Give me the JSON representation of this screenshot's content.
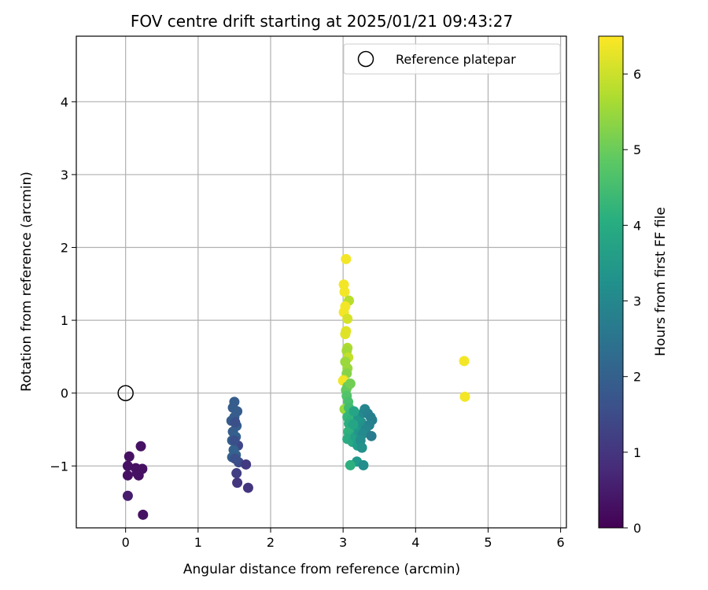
{
  "chart_data": {
    "type": "scatter",
    "title": "FOV centre drift starting at 2025/01/21 09:43:27",
    "xlabel": "Angular distance from reference (arcmin)",
    "ylabel": "Rotation from reference (arcmin)",
    "xlim": [
      -0.68,
      6.08
    ],
    "ylim": [
      -1.85,
      4.9
    ],
    "xticks": [
      0,
      1,
      2,
      3,
      4,
      5,
      6
    ],
    "yticks": [
      -1,
      0,
      1,
      2,
      3,
      4
    ],
    "xtick_labels": [
      "0",
      "1",
      "2",
      "3",
      "4",
      "5",
      "6"
    ],
    "ytick_labels": [
      "−1",
      "0",
      "1",
      "2",
      "3",
      "4"
    ],
    "grid": true,
    "legend": {
      "placement": "top-right",
      "entries": [
        "Reference platepar"
      ]
    },
    "reference_point": {
      "x": 0.0,
      "y": 0.0
    },
    "colorbar": {
      "label": "Hours from first FF file",
      "range": [
        0,
        6.5
      ],
      "ticks": [
        0,
        1,
        2,
        3,
        4,
        5,
        6
      ],
      "tick_labels": [
        "0",
        "1",
        "2",
        "3",
        "4",
        "5",
        "6"
      ],
      "colormap": "viridis"
    },
    "points": [
      {
        "x": 0.21,
        "y": -0.73,
        "c": 0.3
      },
      {
        "x": 0.05,
        "y": -0.87,
        "c": 0.3
      },
      {
        "x": 0.03,
        "y": -1.0,
        "c": 0.3
      },
      {
        "x": 0.14,
        "y": -1.03,
        "c": 0.3
      },
      {
        "x": 0.23,
        "y": -1.04,
        "c": 0.3
      },
      {
        "x": 0.03,
        "y": -1.13,
        "c": 0.3
      },
      {
        "x": 0.18,
        "y": -1.13,
        "c": 0.3
      },
      {
        "x": 0.16,
        "y": -1.1,
        "c": 0.3
      },
      {
        "x": 0.03,
        "y": -1.41,
        "c": 0.5
      },
      {
        "x": 0.24,
        "y": -1.67,
        "c": 0.3
      },
      {
        "x": 1.5,
        "y": -0.12,
        "c": 1.9
      },
      {
        "x": 1.48,
        "y": -0.2,
        "c": 1.9
      },
      {
        "x": 1.54,
        "y": -0.25,
        "c": 1.9
      },
      {
        "x": 1.5,
        "y": -0.33,
        "c": 1.9
      },
      {
        "x": 1.46,
        "y": -0.38,
        "c": 1.9
      },
      {
        "x": 1.53,
        "y": -0.45,
        "c": 1.9
      },
      {
        "x": 1.48,
        "y": -0.53,
        "c": 1.9
      },
      {
        "x": 1.52,
        "y": -0.6,
        "c": 2.0
      },
      {
        "x": 1.47,
        "y": -0.65,
        "c": 2.0
      },
      {
        "x": 1.55,
        "y": -0.72,
        "c": 1.4
      },
      {
        "x": 1.49,
        "y": -0.78,
        "c": 2.0
      },
      {
        "x": 1.52,
        "y": -0.85,
        "c": 2.0
      },
      {
        "x": 1.47,
        "y": -0.88,
        "c": 2.0
      },
      {
        "x": 1.56,
        "y": -0.95,
        "c": 1.5
      },
      {
        "x": 1.66,
        "y": -0.98,
        "c": 1.1
      },
      {
        "x": 1.53,
        "y": -1.1,
        "c": 1.2
      },
      {
        "x": 1.54,
        "y": -1.23,
        "c": 1.0
      },
      {
        "x": 1.69,
        "y": -1.3,
        "c": 1.0
      },
      {
        "x": 1.51,
        "y": -0.4,
        "c": 1.6
      },
      {
        "x": 1.5,
        "y": -0.65,
        "c": 1.6
      },
      {
        "x": 1.51,
        "y": -0.9,
        "c": 1.6
      },
      {
        "x": 3.04,
        "y": 1.84,
        "c": 6.4
      },
      {
        "x": 3.01,
        "y": 1.49,
        "c": 6.4
      },
      {
        "x": 3.02,
        "y": 1.39,
        "c": 6.4
      },
      {
        "x": 3.08,
        "y": 1.27,
        "c": 5.8
      },
      {
        "x": 3.03,
        "y": 1.19,
        "c": 6.4
      },
      {
        "x": 3.01,
        "y": 1.11,
        "c": 6.4
      },
      {
        "x": 3.06,
        "y": 1.02,
        "c": 6.1
      },
      {
        "x": 3.04,
        "y": 0.85,
        "c": 6.2
      },
      {
        "x": 3.03,
        "y": 0.81,
        "c": 6.2
      },
      {
        "x": 3.06,
        "y": 0.62,
        "c": 5.7
      },
      {
        "x": 3.05,
        "y": 0.58,
        "c": 5.6
      },
      {
        "x": 3.07,
        "y": 0.49,
        "c": 5.9
      },
      {
        "x": 3.03,
        "y": 0.43,
        "c": 5.5
      },
      {
        "x": 3.06,
        "y": 0.34,
        "c": 5.5
      },
      {
        "x": 3.05,
        "y": 0.27,
        "c": 5.3
      },
      {
        "x": 3.01,
        "y": 0.18,
        "c": 6.0
      },
      {
        "x": 3.0,
        "y": 0.17,
        "c": 6.4
      },
      {
        "x": 3.06,
        "y": 0.09,
        "c": 5.0
      },
      {
        "x": 3.04,
        "y": 0.04,
        "c": 4.9
      },
      {
        "x": 3.1,
        "y": 0.13,
        "c": 5.1
      },
      {
        "x": 3.05,
        "y": -0.04,
        "c": 4.7
      },
      {
        "x": 3.07,
        "y": -0.12,
        "c": 4.6
      },
      {
        "x": 3.02,
        "y": -0.22,
        "c": 5.5
      },
      {
        "x": 3.08,
        "y": -0.2,
        "c": 4.5
      },
      {
        "x": 3.1,
        "y": -0.28,
        "c": 4.4
      },
      {
        "x": 3.06,
        "y": -0.33,
        "c": 4.3
      },
      {
        "x": 3.12,
        "y": -0.36,
        "c": 4.2
      },
      {
        "x": 3.08,
        "y": -0.42,
        "c": 4.1
      },
      {
        "x": 3.11,
        "y": -0.48,
        "c": 4.0
      },
      {
        "x": 3.07,
        "y": -0.53,
        "c": 4.2
      },
      {
        "x": 3.09,
        "y": -0.58,
        "c": 4.1
      },
      {
        "x": 3.06,
        "y": -0.63,
        "c": 4.0
      },
      {
        "x": 3.13,
        "y": -0.67,
        "c": 3.9
      },
      {
        "x": 3.2,
        "y": -0.72,
        "c": 3.6
      },
      {
        "x": 3.17,
        "y": -0.6,
        "c": 3.7
      },
      {
        "x": 3.22,
        "y": -0.53,
        "c": 3.4
      },
      {
        "x": 3.18,
        "y": -0.45,
        "c": 3.5
      },
      {
        "x": 3.25,
        "y": -0.4,
        "c": 3.3
      },
      {
        "x": 3.21,
        "y": -0.33,
        "c": 3.4
      },
      {
        "x": 3.28,
        "y": -0.27,
        "c": 3.1
      },
      {
        "x": 3.3,
        "y": -0.22,
        "c": 3.0
      },
      {
        "x": 3.34,
        "y": -0.28,
        "c": 2.9
      },
      {
        "x": 3.38,
        "y": -0.33,
        "c": 2.8
      },
      {
        "x": 3.4,
        "y": -0.37,
        "c": 2.8
      },
      {
        "x": 3.36,
        "y": -0.44,
        "c": 2.9
      },
      {
        "x": 3.31,
        "y": -0.5,
        "c": 3.0
      },
      {
        "x": 3.27,
        "y": -0.56,
        "c": 3.1
      },
      {
        "x": 3.39,
        "y": -0.59,
        "c": 2.7
      },
      {
        "x": 3.24,
        "y": -0.65,
        "c": 3.2
      },
      {
        "x": 3.26,
        "y": -0.75,
        "c": 3.3
      },
      {
        "x": 3.19,
        "y": -0.94,
        "c": 3.5
      },
      {
        "x": 3.1,
        "y": -0.99,
        "c": 4.1
      },
      {
        "x": 3.28,
        "y": -0.99,
        "c": 3.2
      },
      {
        "x": 3.15,
        "y": -0.25,
        "c": 3.8
      },
      {
        "x": 3.14,
        "y": -0.43,
        "c": 3.8
      },
      {
        "x": 4.67,
        "y": 0.44,
        "c": 6.4
      },
      {
        "x": 4.68,
        "y": -0.05,
        "c": 6.4
      }
    ]
  }
}
